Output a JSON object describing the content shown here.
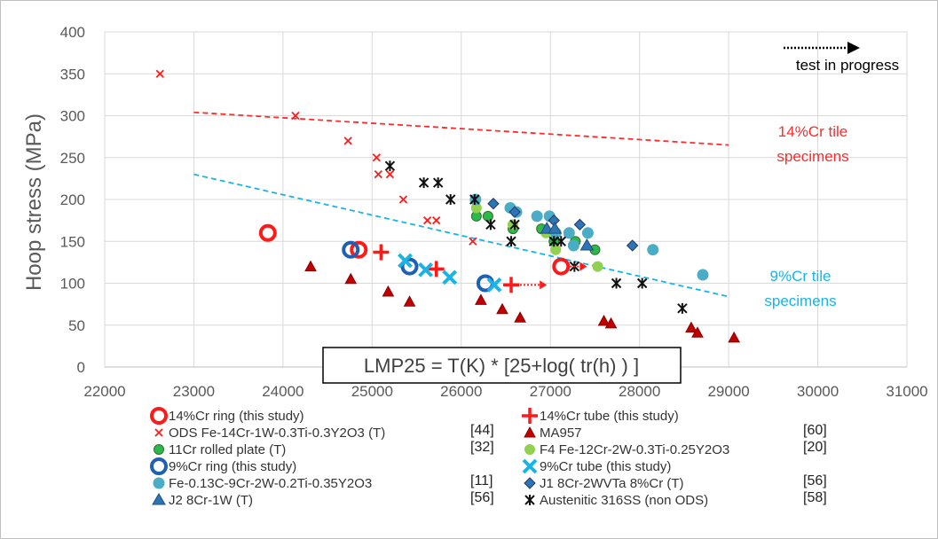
{
  "chart_data": {
    "type": "scatter",
    "ylabel": "Hoop stress (MPa)",
    "xlim": [
      22000,
      31000
    ],
    "ylim": [
      0,
      400
    ],
    "x_ticks": [
      "22000",
      "23000",
      "24000",
      "25000",
      "26000",
      "27000",
      "28000",
      "29000",
      "30000",
      "31000"
    ],
    "y_ticks": [
      "0",
      "50",
      "100",
      "150",
      "200",
      "250",
      "300",
      "350",
      "400"
    ],
    "grid": true,
    "equation": "LMP25 = T(K) * [25+log( tr(h) ) ]",
    "progress_label": "test in progress",
    "trend_lines": [
      {
        "label": "14%Cr tile specimens",
        "label_lines": [
          "14%Cr tile",
          "specimens"
        ],
        "color": "#ff2a2a",
        "x": [
          23000,
          29000
        ],
        "y": [
          304,
          265
        ]
      },
      {
        "label": "9%Cr tile specimens",
        "label_lines": [
          "9%Cr tile",
          "specimens"
        ],
        "color": "#18b4e8",
        "x": [
          23000,
          29000
        ],
        "y": [
          230,
          84
        ]
      }
    ],
    "series": [
      {
        "name": "14%Cr ring (this study)",
        "ref": "",
        "marker": "ring",
        "color": "#ff1a1a",
        "x": [
          23830,
          24850,
          27120
        ],
        "y": [
          160,
          140,
          120
        ]
      },
      {
        "name": "14%Cr tube (this study)",
        "ref": "",
        "marker": "plus",
        "color": "#ff1a1a",
        "x": [
          25100,
          25720,
          26560
        ],
        "y": [
          137,
          117,
          98
        ]
      },
      {
        "name": "ODS Fe-14Cr-1W-0.3Ti-0.3Y2O3 (T)",
        "ref": "[44]",
        "marker": "xsmall",
        "color": "#ff1a1a",
        "x": [
          22620,
          24140,
          24730,
          25050,
          25070,
          25200,
          25350,
          25620,
          25720,
          26130
        ],
        "y": [
          350,
          300,
          270,
          250,
          230,
          230,
          200,
          175,
          175,
          150
        ]
      },
      {
        "name": "MA957",
        "ref": "[60]",
        "marker": "triangle",
        "color": "#c00000",
        "x": [
          24310,
          24760,
          25180,
          25420,
          26220,
          26460,
          26660,
          27600,
          27680,
          28580,
          28650,
          29060
        ],
        "y": [
          120,
          105,
          90,
          78,
          80,
          69,
          59,
          55,
          52,
          47,
          41,
          35
        ]
      },
      {
        "name": "11Cr rolled plate (T)",
        "ref": "[32]",
        "marker": "circle-green",
        "color": "#2db84a",
        "x": [
          26170,
          26300,
          26580,
          26900,
          27040,
          27280,
          27500
        ],
        "y": [
          180,
          180,
          165,
          165,
          150,
          150,
          140
        ]
      },
      {
        "name": "F4 Fe-12Cr-2W-0.3Ti-0.25Y2O3",
        "ref": "[20]",
        "marker": "circle-lightgreen",
        "color": "#92d050",
        "x": [
          26170,
          26580,
          26950,
          27060,
          27530
        ],
        "y": [
          190,
          170,
          160,
          140,
          120
        ]
      },
      {
        "name": "9%Cr ring (this study)",
        "ref": "",
        "marker": "ring",
        "color": "#1f5fb4",
        "x": [
          24760,
          25420,
          26270
        ],
        "y": [
          140,
          120,
          100
        ]
      },
      {
        "name": "9%Cr tube (this study)",
        "ref": "",
        "marker": "xbig",
        "color": "#18b4e8",
        "x": [
          25370,
          25600,
          25870,
          26370
        ],
        "y": [
          127,
          116,
          107,
          98
        ]
      },
      {
        "name": "Fe-0.13C-9Cr-2W-0.2Ti-0.35Y2O3",
        "ref": "[11]",
        "marker": "circle-teal",
        "color": "#4bacc6",
        "x": [
          26160,
          26550,
          26620,
          26850,
          26990,
          27060,
          27210,
          27260,
          27420,
          28150,
          28710
        ],
        "y": [
          200,
          190,
          185,
          180,
          180,
          160,
          160,
          145,
          160,
          140,
          110
        ]
      },
      {
        "name": "J1  8Cr-2WVTa  8%Cr (T)",
        "ref": "[56]",
        "marker": "diamond",
        "color": "#2e75b6",
        "x": [
          26360,
          26600,
          27040,
          27330,
          27920
        ],
        "y": [
          195,
          185,
          175,
          170,
          145
        ]
      },
      {
        "name": "J2   8Cr-1W  (T)",
        "ref": "[56]",
        "marker": "triangle-blue",
        "color": "#2e75b6",
        "x": [
          26960,
          27050,
          27410
        ],
        "y": [
          165,
          165,
          145
        ]
      },
      {
        "name": "Austenitic 316SS (non ODS)",
        "ref": "[58]",
        "marker": "asterisk",
        "color": "#111111",
        "x": [
          25200,
          25580,
          25740,
          25880,
          26150,
          26330,
          26600,
          26560,
          27040,
          27120,
          27270,
          27740,
          28030,
          28480
        ],
        "y": [
          240,
          220,
          220,
          200,
          200,
          170,
          170,
          150,
          150,
          150,
          120,
          100,
          100,
          70
        ]
      }
    ],
    "legend": {
      "placement": "bottom",
      "items": [
        {
          "label": "14%Cr ring (this study)",
          "ref": ""
        },
        {
          "label": "14%Cr tube (this study)",
          "ref": ""
        },
        {
          "label": "ODS Fe-14Cr-1W-0.3Ti-0.3Y2O3 (T)",
          "ref": "[44]"
        },
        {
          "label": "MA957",
          "ref": "[60]"
        },
        {
          "label": "11Cr rolled plate (T)",
          "ref": "[32]"
        },
        {
          "label": "F4 Fe-12Cr-2W-0.3Ti-0.25Y2O3",
          "ref": "[20]"
        },
        {
          "label": "9%Cr ring (this study)",
          "ref": ""
        },
        {
          "label": "9%Cr tube (this study)",
          "ref": ""
        },
        {
          "label": "Fe-0.13C-9Cr-2W-0.2Ti-0.35Y2O3",
          "ref": "[11]"
        },
        {
          "label": "J1  8Cr-2WVTa  8%Cr (T)",
          "ref": "[56]"
        },
        {
          "label": "J2   8Cr-1W  (T)",
          "ref": "[56]"
        },
        {
          "label": "Austenitic 316SS (non ODS)",
          "ref": "[58]"
        }
      ]
    }
  }
}
